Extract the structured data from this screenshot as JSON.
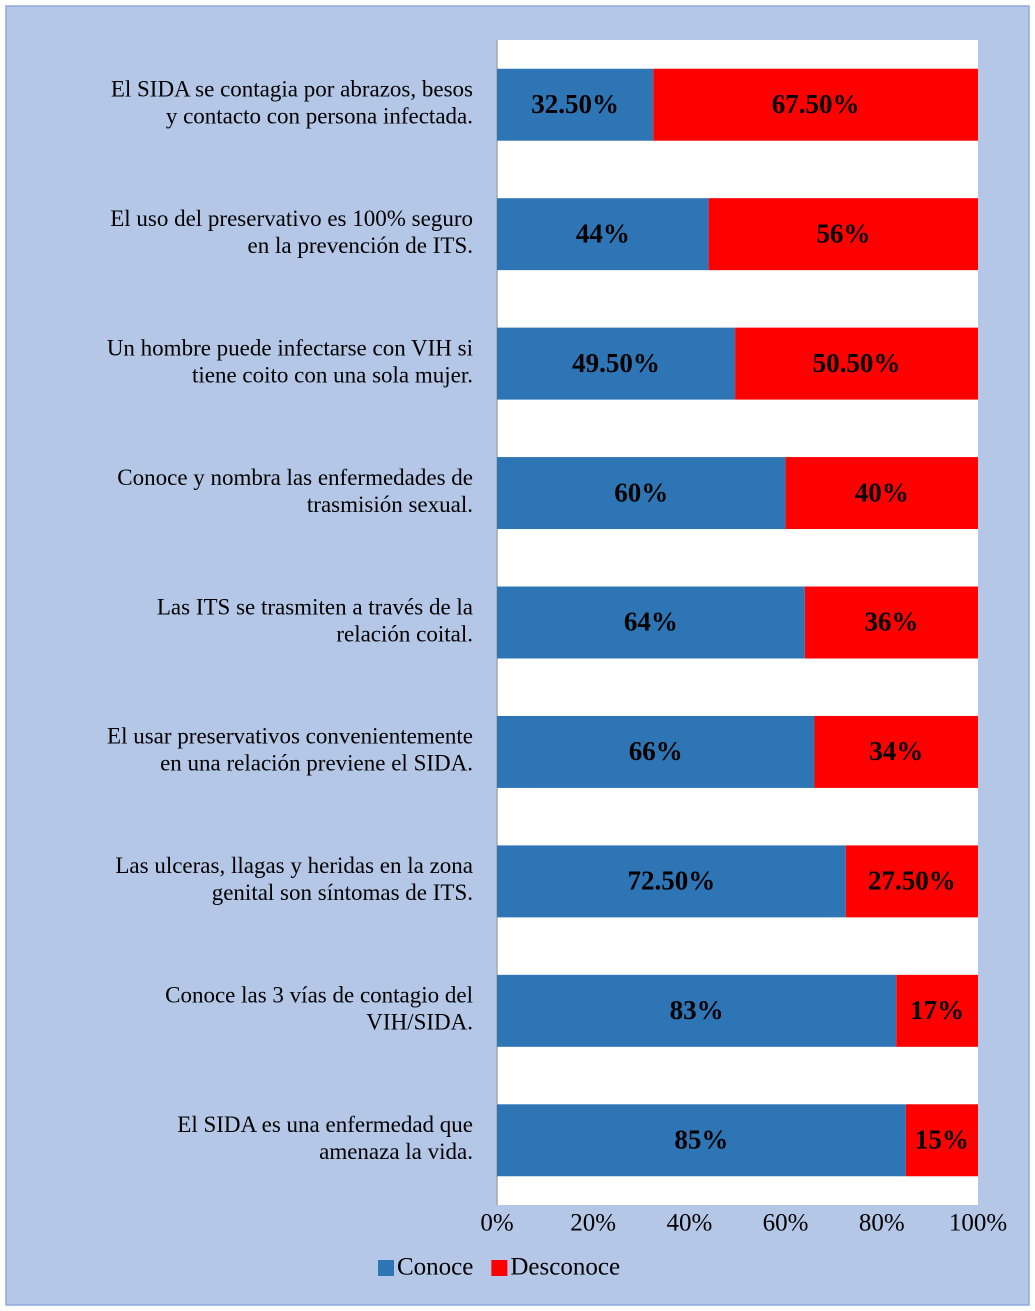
{
  "chart_data": {
    "type": "stacked_barh",
    "categories": [
      [
        "El SIDA se contagia por abrazos, besos",
        "y contacto con persona infectada."
      ],
      [
        "El uso del preservativo es 100% seguro",
        "en la prevención de ITS."
      ],
      [
        "Un hombre puede infectarse con VIH si",
        "tiene coito con una sola mujer."
      ],
      [
        "Conoce y nombra las enfermedades de",
        "trasmisión sexual."
      ],
      [
        "Las ITS se trasmiten a través de la",
        "relación coital."
      ],
      [
        "El usar preservativos convenientemente",
        "en una relación previene el SIDA."
      ],
      [
        "Las ulceras, llagas y heridas en la zona",
        "genital son síntomas de ITS."
      ],
      [
        "Conoce las 3 vías de contagio del",
        "VIH/SIDA."
      ],
      [
        "El SIDA es una enfermedad que",
        "amenaza la vida."
      ]
    ],
    "series": [
      {
        "name": "Conoce",
        "color": "#2e75b6",
        "values": [
          32.5,
          44,
          49.5,
          60,
          64,
          66,
          72.5,
          83,
          85
        ],
        "value_labels": [
          "32.50%",
          "44%",
          "49.50%",
          "60%",
          "64%",
          "66%",
          "72.50%",
          "83%",
          "85%"
        ]
      },
      {
        "name": "Desconoce",
        "color": "#ff0000",
        "values": [
          67.5,
          56,
          50.5,
          40,
          36,
          34,
          27.5,
          17,
          15
        ],
        "value_labels": [
          "67.50%",
          "56%",
          "50.50%",
          "40%",
          "36%",
          "34%",
          "27.50%",
          "17%",
          "15%"
        ]
      }
    ],
    "xlim": [
      0,
      100
    ],
    "xticks": [
      {
        "value": 0,
        "label": "0%"
      },
      {
        "value": 20,
        "label": "20%"
      },
      {
        "value": 40,
        "label": "40%"
      },
      {
        "value": 60,
        "label": "60%"
      },
      {
        "value": 80,
        "label": "80%"
      },
      {
        "value": 100,
        "label": "100%"
      }
    ],
    "grid": false,
    "legend": "bottom"
  }
}
